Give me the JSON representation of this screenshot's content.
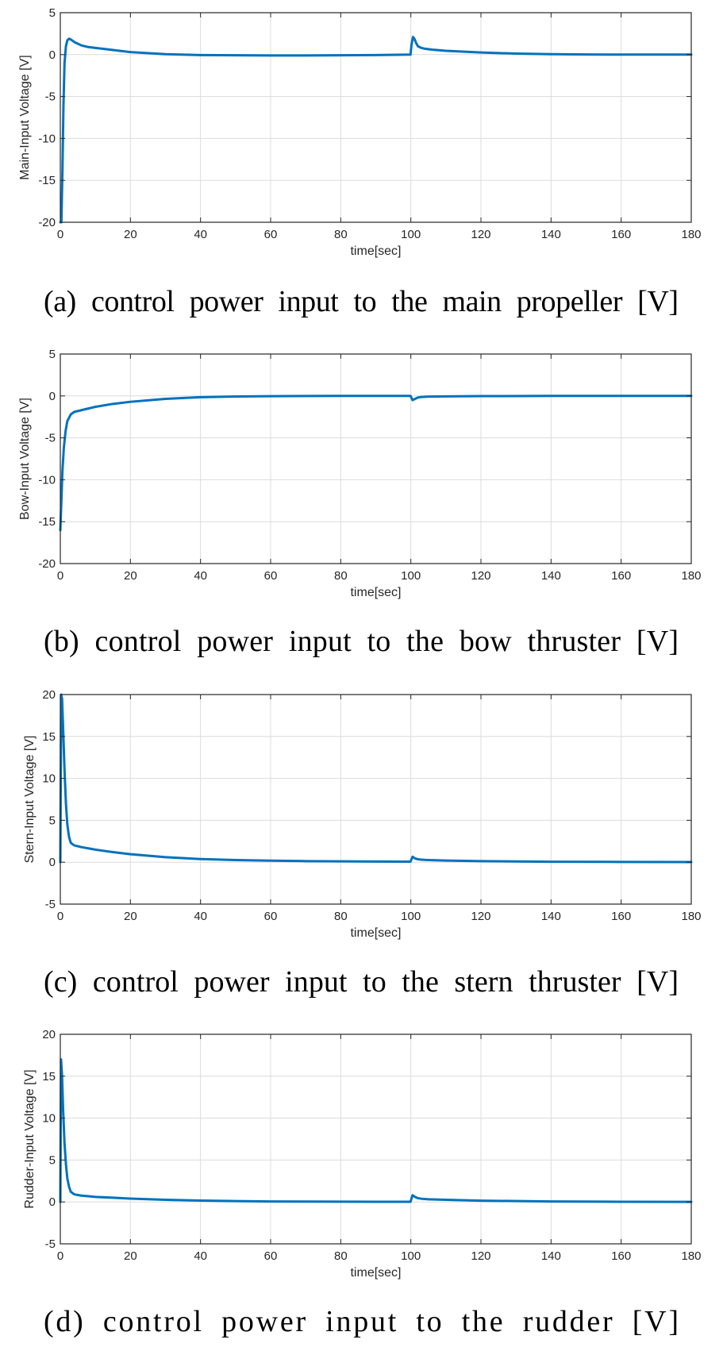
{
  "chart_data": [
    {
      "type": "line",
      "caption": "(a) control power input to the main propeller [V]",
      "xlabel": "time[sec]",
      "ylabel": "Main-Input Voltage [V]",
      "xlim": [
        0,
        180
      ],
      "ylim": [
        -20,
        5
      ],
      "xticks": [
        0,
        20,
        40,
        60,
        80,
        100,
        120,
        140,
        160,
        180
      ],
      "yticks": [
        -20,
        -15,
        -10,
        -5,
        0,
        5
      ],
      "grid": true,
      "color": "#0072BD",
      "series": [
        {
          "x": [
            0,
            0.3,
            0.6,
            0.9,
            1.2,
            1.6,
            2,
            2.5,
            3,
            4,
            6,
            8,
            10,
            15,
            20,
            30,
            40,
            50,
            60,
            70,
            80,
            90,
            99.9,
            100.2,
            100.6,
            101,
            101.5,
            102,
            103,
            104,
            106,
            110,
            120,
            130,
            140,
            150,
            160,
            170,
            180
          ],
          "y": [
            -20,
            -20,
            -14,
            -6,
            -1,
            1,
            1.7,
            1.9,
            1.8,
            1.5,
            1.1,
            0.9,
            0.8,
            0.55,
            0.3,
            0.05,
            -0.05,
            -0.08,
            -0.1,
            -0.1,
            -0.08,
            -0.05,
            0,
            1.2,
            2.1,
            1.9,
            1.4,
            1,
            0.8,
            0.7,
            0.6,
            0.45,
            0.25,
            0.12,
            0.05,
            0.02,
            0,
            0,
            0
          ]
        }
      ]
    },
    {
      "type": "line",
      "caption": "(b) control power input to the bow thruster [V]",
      "xlabel": "time[sec]",
      "ylabel": "Bow-Input Voltage [V]",
      "xlim": [
        0,
        180
      ],
      "ylim": [
        -20,
        5
      ],
      "xticks": [
        0,
        20,
        40,
        60,
        80,
        100,
        120,
        140,
        160,
        180
      ],
      "yticks": [
        -20,
        -15,
        -10,
        -5,
        0,
        5
      ],
      "grid": true,
      "color": "#0072BD",
      "series": [
        {
          "x": [
            0,
            0.3,
            0.6,
            1,
            1.5,
            2,
            3,
            4,
            6,
            8,
            10,
            15,
            20,
            30,
            40,
            50,
            60,
            70,
            80,
            90,
            99.9,
            100.5,
            101.2,
            102,
            103,
            105,
            110,
            120,
            140,
            160,
            180
          ],
          "y": [
            -16,
            -12.5,
            -9,
            -6.2,
            -4.2,
            -3,
            -2.2,
            -1.9,
            -1.7,
            -1.5,
            -1.3,
            -0.95,
            -0.7,
            -0.35,
            -0.15,
            -0.07,
            -0.03,
            -0.01,
            0,
            0,
            0,
            -0.5,
            -0.35,
            -0.2,
            -0.12,
            -0.08,
            -0.05,
            -0.02,
            0,
            0,
            0
          ]
        }
      ]
    },
    {
      "type": "line",
      "caption": "(c) control power input to the stern thruster [V]",
      "xlabel": "time[sec]",
      "ylabel": "Stern-Input Voltage [V]",
      "xlim": [
        0,
        180
      ],
      "ylim": [
        -5,
        20
      ],
      "xticks": [
        0,
        20,
        40,
        60,
        80,
        100,
        120,
        140,
        160,
        180
      ],
      "yticks": [
        -5,
        0,
        5,
        10,
        15,
        20
      ],
      "grid": true,
      "color": "#0072BD",
      "series": [
        {
          "x": [
            0,
            0.25,
            0.5,
            0.8,
            1.2,
            1.6,
            2,
            2.5,
            3,
            4,
            6,
            8,
            10,
            15,
            20,
            30,
            40,
            50,
            60,
            70,
            80,
            90,
            99.9,
            100.5,
            101.2,
            102,
            103,
            105,
            110,
            120,
            140,
            160,
            180
          ],
          "y": [
            0,
            20,
            19.5,
            16,
            11,
            7,
            4.5,
            3,
            2.3,
            2,
            1.8,
            1.65,
            1.5,
            1.2,
            0.95,
            0.6,
            0.38,
            0.25,
            0.18,
            0.13,
            0.1,
            0.08,
            0.07,
            0.65,
            0.45,
            0.35,
            0.3,
            0.25,
            0.2,
            0.12,
            0.06,
            0.03,
            0.02
          ]
        }
      ]
    },
    {
      "type": "line",
      "caption": "(d) control power input to the rudder [V]",
      "xlabel": "time[sec]",
      "ylabel": "Rudder-Input Voltage [V]",
      "xlim": [
        0,
        180
      ],
      "ylim": [
        -5,
        20
      ],
      "xticks": [
        0,
        20,
        40,
        60,
        80,
        100,
        120,
        140,
        160,
        180
      ],
      "yticks": [
        -5,
        0,
        5,
        10,
        15,
        20
      ],
      "grid": true,
      "color": "#0072BD",
      "series": [
        {
          "x": [
            0,
            0.2,
            0.5,
            0.8,
            1.2,
            1.6,
            2,
            2.5,
            3,
            4,
            6,
            8,
            10,
            15,
            20,
            30,
            40,
            50,
            60,
            70,
            80,
            90,
            99.9,
            100.5,
            101.2,
            102,
            103,
            105,
            110,
            120,
            140,
            160,
            180
          ],
          "y": [
            0,
            17,
            15,
            11,
            7,
            4.5,
            2.8,
            1.8,
            1.2,
            0.9,
            0.75,
            0.68,
            0.6,
            0.5,
            0.4,
            0.26,
            0.16,
            0.1,
            0.06,
            0.04,
            0.03,
            0.02,
            0.02,
            0.8,
            0.6,
            0.45,
            0.38,
            0.32,
            0.25,
            0.15,
            0.06,
            0.02,
            0.01
          ]
        }
      ]
    }
  ]
}
